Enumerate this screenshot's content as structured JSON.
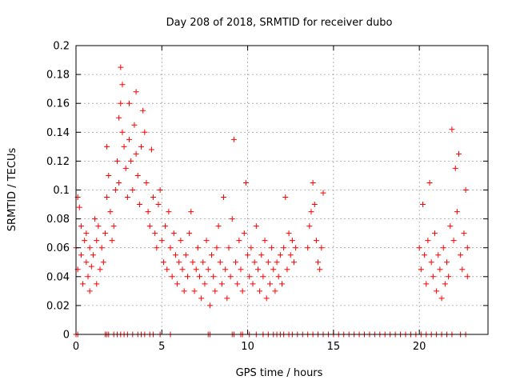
{
  "chart_data": {
    "type": "scatter",
    "title": "Day 208 of 2018, SRMTID for receiver dubo",
    "xlabel": "GPS time / hours",
    "ylabel": "SRMTID / TECUs",
    "xlim": [
      0,
      24
    ],
    "ylim": [
      0,
      0.2
    ],
    "xticks": [
      0,
      5,
      10,
      15,
      20
    ],
    "xtick_labels": [
      "0",
      "5",
      "10",
      "15",
      "20"
    ],
    "yticks": [
      0,
      0.02,
      0.04,
      0.06,
      0.08,
      0.1,
      0.12,
      0.14,
      0.16,
      0.18,
      0.2
    ],
    "ytick_labels": [
      "0",
      "0.02",
      "0.04",
      "0.06",
      "0.08",
      "0.1",
      "0.12",
      "0.14",
      "0.16",
      "0.18",
      "0.2"
    ],
    "grid": true,
    "marker": "+",
    "color": "#ff0000",
    "series": [
      {
        "name": "SRMTID",
        "points": [
          [
            0.0,
            0.06
          ],
          [
            0.1,
            0.095
          ],
          [
            0.1,
            0.045
          ],
          [
            0.2,
            0.088
          ],
          [
            0.3,
            0.055
          ],
          [
            0.3,
            0.075
          ],
          [
            0.4,
            0.035
          ],
          [
            0.5,
            0.065
          ],
          [
            0.6,
            0.07
          ],
          [
            0.6,
            0.05
          ],
          [
            0.7,
            0.04
          ],
          [
            0.8,
            0.03
          ],
          [
            0.8,
            0.06
          ],
          [
            0.9,
            0.047
          ],
          [
            1.0,
            0.055
          ],
          [
            1.1,
            0.08
          ],
          [
            1.2,
            0.035
          ],
          [
            1.2,
            0.065
          ],
          [
            1.3,
            0.075
          ],
          [
            1.4,
            0.045
          ],
          [
            1.5,
            0.06
          ],
          [
            1.6,
            0.05
          ],
          [
            1.7,
            0.07
          ],
          [
            1.8,
            0.13
          ],
          [
            1.8,
            0.095
          ],
          [
            1.9,
            0.11
          ],
          [
            2.0,
            0.085
          ],
          [
            2.1,
            0.065
          ],
          [
            2.2,
            0.075
          ],
          [
            2.3,
            0.1
          ],
          [
            2.4,
            0.12
          ],
          [
            2.5,
            0.15
          ],
          [
            2.5,
            0.105
          ],
          [
            2.6,
            0.185
          ],
          [
            2.6,
            0.16
          ],
          [
            2.7,
            0.173
          ],
          [
            2.7,
            0.14
          ],
          [
            2.8,
            0.13
          ],
          [
            2.9,
            0.115
          ],
          [
            3.0,
            0.095
          ],
          [
            3.1,
            0.16
          ],
          [
            3.1,
            0.135
          ],
          [
            3.2,
            0.12
          ],
          [
            3.3,
            0.1
          ],
          [
            3.4,
            0.145
          ],
          [
            3.5,
            0.125
          ],
          [
            3.5,
            0.168
          ],
          [
            3.6,
            0.11
          ],
          [
            3.7,
            0.09
          ],
          [
            3.8,
            0.13
          ],
          [
            3.9,
            0.155
          ],
          [
            4.0,
            0.14
          ],
          [
            4.1,
            0.105
          ],
          [
            4.2,
            0.085
          ],
          [
            4.3,
            0.075
          ],
          [
            4.4,
            0.128
          ],
          [
            4.5,
            0.095
          ],
          [
            4.6,
            0.07
          ],
          [
            4.7,
            0.06
          ],
          [
            4.8,
            0.09
          ],
          [
            4.9,
            0.1
          ],
          [
            5.0,
            0.065
          ],
          [
            5.1,
            0.05
          ],
          [
            5.2,
            0.075
          ],
          [
            5.3,
            0.045
          ],
          [
            5.4,
            0.085
          ],
          [
            5.5,
            0.06
          ],
          [
            5.6,
            0.04
          ],
          [
            5.7,
            0.07
          ],
          [
            5.8,
            0.055
          ],
          [
            5.9,
            0.035
          ],
          [
            6.0,
            0.05
          ],
          [
            6.1,
            0.065
          ],
          [
            6.2,
            0.045
          ],
          [
            6.3,
            0.03
          ],
          [
            6.4,
            0.055
          ],
          [
            6.5,
            0.04
          ],
          [
            6.6,
            0.07
          ],
          [
            6.7,
            0.085
          ],
          [
            6.8,
            0.05
          ],
          [
            6.9,
            0.03
          ],
          [
            7.0,
            0.045
          ],
          [
            7.1,
            0.06
          ],
          [
            7.2,
            0.04
          ],
          [
            7.3,
            0.025
          ],
          [
            7.4,
            0.05
          ],
          [
            7.5,
            0.035
          ],
          [
            7.6,
            0.065
          ],
          [
            7.7,
            0.045
          ],
          [
            7.8,
            0.02
          ],
          [
            7.9,
            0.055
          ],
          [
            8.0,
            0.04
          ],
          [
            8.1,
            0.03
          ],
          [
            8.2,
            0.06
          ],
          [
            8.3,
            0.075
          ],
          [
            8.4,
            0.05
          ],
          [
            8.5,
            0.035
          ],
          [
            8.6,
            0.095
          ],
          [
            8.7,
            0.045
          ],
          [
            8.8,
            0.025
          ],
          [
            8.9,
            0.06
          ],
          [
            9.0,
            0.04
          ],
          [
            9.1,
            0.08
          ],
          [
            9.2,
            0.135
          ],
          [
            9.3,
            0.05
          ],
          [
            9.4,
            0.035
          ],
          [
            9.5,
            0.065
          ],
          [
            9.6,
            0.045
          ],
          [
            9.7,
            0.03
          ],
          [
            9.8,
            0.07
          ],
          [
            9.9,
            0.105
          ],
          [
            10.0,
            0.055
          ],
          [
            10.1,
            0.04
          ],
          [
            10.2,
            0.06
          ],
          [
            10.3,
            0.035
          ],
          [
            10.4,
            0.05
          ],
          [
            10.5,
            0.075
          ],
          [
            10.6,
            0.045
          ],
          [
            10.7,
            0.03
          ],
          [
            10.8,
            0.055
          ],
          [
            10.9,
            0.04
          ],
          [
            11.0,
            0.065
          ],
          [
            11.1,
            0.025
          ],
          [
            11.2,
            0.05
          ],
          [
            11.3,
            0.035
          ],
          [
            11.4,
            0.06
          ],
          [
            11.5,
            0.045
          ],
          [
            11.6,
            0.03
          ],
          [
            11.7,
            0.05
          ],
          [
            11.8,
            0.04
          ],
          [
            11.9,
            0.055
          ],
          [
            12.0,
            0.035
          ],
          [
            12.1,
            0.06
          ],
          [
            12.2,
            0.095
          ],
          [
            12.3,
            0.045
          ],
          [
            12.4,
            0.07
          ],
          [
            12.5,
            0.055
          ],
          [
            12.6,
            0.065
          ],
          [
            12.7,
            0.05
          ],
          [
            12.8,
            0.06
          ],
          [
            13.5,
            0.06
          ],
          [
            13.6,
            0.075
          ],
          [
            13.7,
            0.085
          ],
          [
            13.8,
            0.105
          ],
          [
            13.9,
            0.09
          ],
          [
            14.0,
            0.065
          ],
          [
            14.1,
            0.05
          ],
          [
            14.2,
            0.045
          ],
          [
            14.3,
            0.06
          ],
          [
            14.4,
            0.098
          ],
          [
            20.0,
            0.06
          ],
          [
            20.1,
            0.045
          ],
          [
            20.2,
            0.09
          ],
          [
            20.3,
            0.055
          ],
          [
            20.4,
            0.035
          ],
          [
            20.5,
            0.065
          ],
          [
            20.6,
            0.105
          ],
          [
            20.7,
            0.05
          ],
          [
            20.8,
            0.04
          ],
          [
            20.9,
            0.07
          ],
          [
            21.0,
            0.03
          ],
          [
            21.1,
            0.055
          ],
          [
            21.2,
            0.045
          ],
          [
            21.3,
            0.025
          ],
          [
            21.4,
            0.06
          ],
          [
            21.5,
            0.035
          ],
          [
            21.6,
            0.05
          ],
          [
            21.7,
            0.04
          ],
          [
            21.8,
            0.075
          ],
          [
            21.9,
            0.142
          ],
          [
            22.0,
            0.065
          ],
          [
            22.1,
            0.115
          ],
          [
            22.2,
            0.085
          ],
          [
            22.3,
            0.125
          ],
          [
            22.4,
            0.055
          ],
          [
            22.5,
            0.045
          ],
          [
            22.6,
            0.07
          ],
          [
            22.7,
            0.1
          ],
          [
            22.8,
            0.06
          ],
          [
            22.8,
            0.04
          ]
        ]
      }
    ],
    "zero_markers_x": [
      0.0,
      0.1,
      1.7,
      1.8,
      1.9,
      2.2,
      2.4,
      2.6,
      2.8,
      3.0,
      3.3,
      3.6,
      3.8,
      4.0,
      4.3,
      4.5,
      4.9,
      5.5,
      7.7,
      7.8,
      9.1,
      9.2,
      9.6,
      9.7,
      10.1,
      10.5,
      10.9,
      11.2,
      11.5,
      11.7,
      11.9,
      12.1,
      12.4,
      12.6,
      12.9,
      13.2,
      13.5,
      13.8,
      14.1,
      14.4,
      14.7,
      15.0,
      15.3,
      15.6,
      15.9,
      16.2,
      16.5,
      16.8,
      17.1,
      17.4,
      17.7,
      18.0,
      18.3,
      18.6,
      18.9,
      19.2,
      19.5,
      19.8,
      20.1,
      20.4,
      20.7,
      21.0,
      21.3,
      21.6,
      21.9,
      22.4,
      22.7
    ]
  }
}
